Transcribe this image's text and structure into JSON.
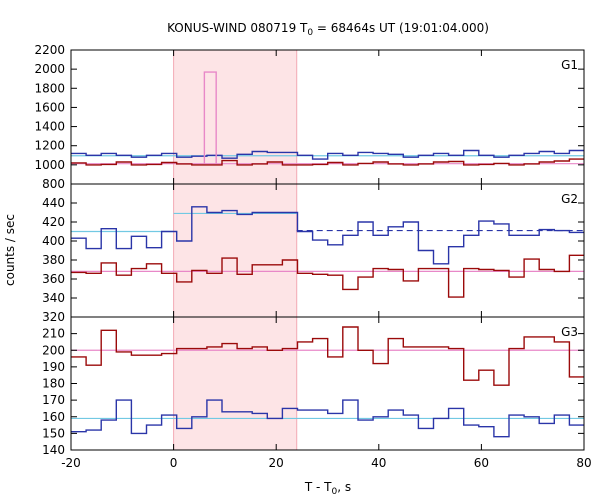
{
  "title": "KONUS-WIND 080719 T",
  "title_sub": "0",
  "title_rest": " = 68464s UT (19:01:04.000)",
  "xlabel": "T - T",
  "xlabel_sub": "0",
  "xlabel_rest": ", s",
  "ylabel": "counts / sec",
  "colors": {
    "dark_red": "#9b0a0a",
    "blue": "#2a35a8",
    "cyan": "#72c9e3",
    "pink": "#e888c8",
    "shade": "#fde4e6"
  },
  "chart_data": [
    {
      "type": "line",
      "panel": "G1",
      "xlim": [
        -20,
        80
      ],
      "ylim": [
        800,
        2200
      ],
      "xticks": [
        -20,
        0,
        20,
        40,
        60,
        80
      ],
      "yticks": [
        800,
        1000,
        1200,
        1400,
        1600,
        1800,
        2000,
        2200
      ],
      "shaded_interval": [
        0,
        24
      ],
      "bin_width": 2.944,
      "series": [
        {
          "color": "dark_red",
          "start": -20,
          "values": [
            1020,
            1000,
            1005,
            1030,
            1000,
            1005,
            1025,
            1010,
            1000,
            1000,
            1045,
            1000,
            1010,
            1030,
            1000,
            1000,
            1005,
            1025,
            1000,
            1015,
            1030,
            1010,
            1000,
            1010,
            1030,
            1035,
            1000,
            1005,
            1015,
            1000,
            1010,
            1030,
            1040,
            1060
          ]
        },
        {
          "color": "blue",
          "start": -20,
          "values": [
            1120,
            1100,
            1120,
            1100,
            1080,
            1100,
            1120,
            1080,
            1090,
            1100,
            1070,
            1110,
            1140,
            1130,
            1130,
            1100,
            1060,
            1120,
            1100,
            1130,
            1120,
            1110,
            1080,
            1100,
            1120,
            1100,
            1150,
            1100,
            1080,
            1100,
            1120,
            1140,
            1120,
            1150
          ]
        },
        {
          "color": "pink",
          "start": 6,
          "values": [
            1970
          ],
          "width": 2.3
        }
      ],
      "fit_levels": [
        {
          "color": "cyan",
          "value": 1095
        },
        {
          "color": "pink",
          "value": 1012
        }
      ]
    },
    {
      "type": "line",
      "panel": "G2",
      "xlim": [
        -20,
        80
      ],
      "ylim": [
        320,
        460
      ],
      "xticks": [
        -20,
        0,
        20,
        40,
        60,
        80
      ],
      "yticks": [
        320,
        340,
        360,
        380,
        400,
        420,
        440
      ],
      "shaded_interval": [
        0,
        24
      ],
      "bin_width": 2.944,
      "series": [
        {
          "color": "dark_red",
          "start": -20,
          "values": [
            367,
            366,
            377,
            364,
            371,
            376,
            366,
            357,
            369,
            366,
            382,
            365,
            375,
            375,
            380,
            366,
            365,
            364,
            349,
            362,
            371,
            370,
            358,
            371,
            371,
            341,
            371,
            370,
            369,
            362,
            381,
            370,
            368,
            385,
            369
          ]
        },
        {
          "color": "blue",
          "start": -20,
          "values": [
            403,
            392,
            413,
            392,
            405,
            393,
            410,
            400,
            436,
            430,
            432,
            428,
            430,
            430,
            430,
            410,
            401,
            396,
            406,
            420,
            406,
            415,
            420,
            390,
            376,
            394,
            406,
            421,
            418,
            406,
            406,
            412,
            411,
            409,
            412
          ]
        }
      ],
      "fit_levels": [
        {
          "color": "cyan",
          "value": 410,
          "x_range": [
            -20,
            0
          ]
        },
        {
          "color": "cyan",
          "value": 429,
          "x_range": [
            0,
            24
          ]
        },
        {
          "color": "blue",
          "value": 411,
          "x_range": [
            24,
            80
          ],
          "dashed": true
        },
        {
          "color": "pink",
          "value": 368
        }
      ]
    },
    {
      "type": "line",
      "panel": "G3",
      "xlim": [
        -20,
        80
      ],
      "ylim": [
        140,
        220
      ],
      "xticks": [
        -20,
        0,
        20,
        40,
        60,
        80
      ],
      "yticks": [
        140,
        150,
        160,
        170,
        180,
        190,
        200,
        210
      ],
      "shaded_interval": [
        0,
        24
      ],
      "bin_width": 2.944,
      "series": [
        {
          "color": "dark_red",
          "start": -20,
          "values": [
            196,
            191,
            212,
            199,
            197,
            197,
            198,
            201,
            201,
            202,
            204,
            201,
            202,
            200,
            201,
            205,
            207,
            196,
            214,
            200,
            192,
            207,
            202,
            202,
            202,
            201,
            182,
            188,
            179,
            201,
            208,
            208,
            205,
            184,
            198
          ]
        },
        {
          "color": "blue",
          "start": -20,
          "values": [
            151,
            152,
            158,
            170,
            150,
            155,
            161,
            153,
            160,
            170,
            163,
            163,
            162,
            159,
            165,
            164,
            164,
            162,
            170,
            158,
            160,
            164,
            161,
            153,
            159,
            165,
            155,
            154,
            148,
            161,
            160,
            156,
            161,
            155,
            165,
            158
          ]
        }
      ],
      "fit_levels": [
        {
          "color": "pink",
          "value": 200
        },
        {
          "color": "cyan",
          "value": 159
        }
      ]
    }
  ],
  "panel_labels": [
    "G1",
    "G2",
    "G3"
  ]
}
